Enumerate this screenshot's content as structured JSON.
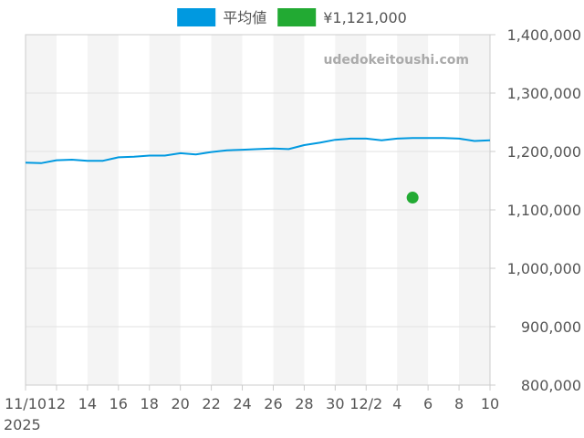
{
  "chart_data": {
    "type": "line",
    "title": "",
    "watermark": "udedokeitoushi.com",
    "legend": [
      {
        "label": "平均値",
        "color": "#0099e0"
      },
      {
        "label": "¥1,121,000",
        "color": "#22aa33"
      }
    ],
    "legend_position": "top-center",
    "yaxis_position": "right",
    "ylim": [
      800000,
      1400000
    ],
    "y_ticks": [
      {
        "value": 800000,
        "label": "800,000"
      },
      {
        "value": 900000,
        "label": "900,000"
      },
      {
        "value": 1000000,
        "label": "1,000,000"
      },
      {
        "value": 1100000,
        "label": "1,100,000"
      },
      {
        "value": 1200000,
        "label": "1,200,000"
      },
      {
        "value": 1300000,
        "label": "1,300,000"
      },
      {
        "value": 1400000,
        "label": "1,400,000"
      }
    ],
    "xlim": [
      "2025-11-10",
      "2025-12-10"
    ],
    "x_ticks": [
      {
        "date": "2025-11-10",
        "label": "11/10",
        "sublabel": "2025"
      },
      {
        "date": "2025-11-12",
        "label": "12"
      },
      {
        "date": "2025-11-14",
        "label": "14"
      },
      {
        "date": "2025-11-16",
        "label": "16"
      },
      {
        "date": "2025-11-18",
        "label": "18"
      },
      {
        "date": "2025-11-20",
        "label": "20"
      },
      {
        "date": "2025-11-22",
        "label": "22"
      },
      {
        "date": "2025-11-24",
        "label": "24"
      },
      {
        "date": "2025-11-26",
        "label": "26"
      },
      {
        "date": "2025-11-28",
        "label": "28"
      },
      {
        "date": "2025-11-30",
        "label": "30"
      },
      {
        "date": "2025-12-02",
        "label": "12/2"
      },
      {
        "date": "2025-12-04",
        "label": "4"
      },
      {
        "date": "2025-12-06",
        "label": "6"
      },
      {
        "date": "2025-12-08",
        "label": "8"
      },
      {
        "date": "2025-12-10",
        "label": "10"
      }
    ],
    "bands": [
      [
        "2025-11-10",
        "2025-11-12"
      ],
      [
        "2025-11-14",
        "2025-11-16"
      ],
      [
        "2025-11-18",
        "2025-11-20"
      ],
      [
        "2025-11-22",
        "2025-11-24"
      ],
      [
        "2025-11-26",
        "2025-11-28"
      ],
      [
        "2025-11-30",
        "2025-12-02"
      ],
      [
        "2025-12-04",
        "2025-12-06"
      ],
      [
        "2025-12-08",
        "2025-12-10"
      ]
    ],
    "grid": true,
    "series": [
      {
        "name": "平均値",
        "type": "line",
        "color": "#0099e0",
        "points": [
          {
            "x": "2025-11-10",
            "y": 1181000
          },
          {
            "x": "2025-11-11",
            "y": 1180000
          },
          {
            "x": "2025-11-12",
            "y": 1185000
          },
          {
            "x": "2025-11-13",
            "y": 1186000
          },
          {
            "x": "2025-11-14",
            "y": 1184000
          },
          {
            "x": "2025-11-15",
            "y": 1184000
          },
          {
            "x": "2025-11-16",
            "y": 1190000
          },
          {
            "x": "2025-11-17",
            "y": 1191000
          },
          {
            "x": "2025-11-18",
            "y": 1193000
          },
          {
            "x": "2025-11-19",
            "y": 1193000
          },
          {
            "x": "2025-11-20",
            "y": 1197000
          },
          {
            "x": "2025-11-21",
            "y": 1195000
          },
          {
            "x": "2025-11-22",
            "y": 1199000
          },
          {
            "x": "2025-11-23",
            "y": 1202000
          },
          {
            "x": "2025-11-24",
            "y": 1203000
          },
          {
            "x": "2025-11-25",
            "y": 1204000
          },
          {
            "x": "2025-11-26",
            "y": 1205000
          },
          {
            "x": "2025-11-27",
            "y": 1204000
          },
          {
            "x": "2025-11-28",
            "y": 1211000
          },
          {
            "x": "2025-11-29",
            "y": 1215000
          },
          {
            "x": "2025-11-30",
            "y": 1220000
          },
          {
            "x": "2025-12-01",
            "y": 1222000
          },
          {
            "x": "2025-12-02",
            "y": 1222000
          },
          {
            "x": "2025-12-03",
            "y": 1219000
          },
          {
            "x": "2025-12-04",
            "y": 1222000
          },
          {
            "x": "2025-12-05",
            "y": 1223000
          },
          {
            "x": "2025-12-06",
            "y": 1223000
          },
          {
            "x": "2025-12-07",
            "y": 1223000
          },
          {
            "x": "2025-12-08",
            "y": 1222000
          },
          {
            "x": "2025-12-09",
            "y": 1218000
          },
          {
            "x": "2025-12-10",
            "y": 1219000
          }
        ]
      },
      {
        "name": "¥1,121,000",
        "type": "scatter",
        "color": "#22aa33",
        "points": [
          {
            "x": "2025-12-05",
            "y": 1121000
          }
        ]
      }
    ]
  }
}
